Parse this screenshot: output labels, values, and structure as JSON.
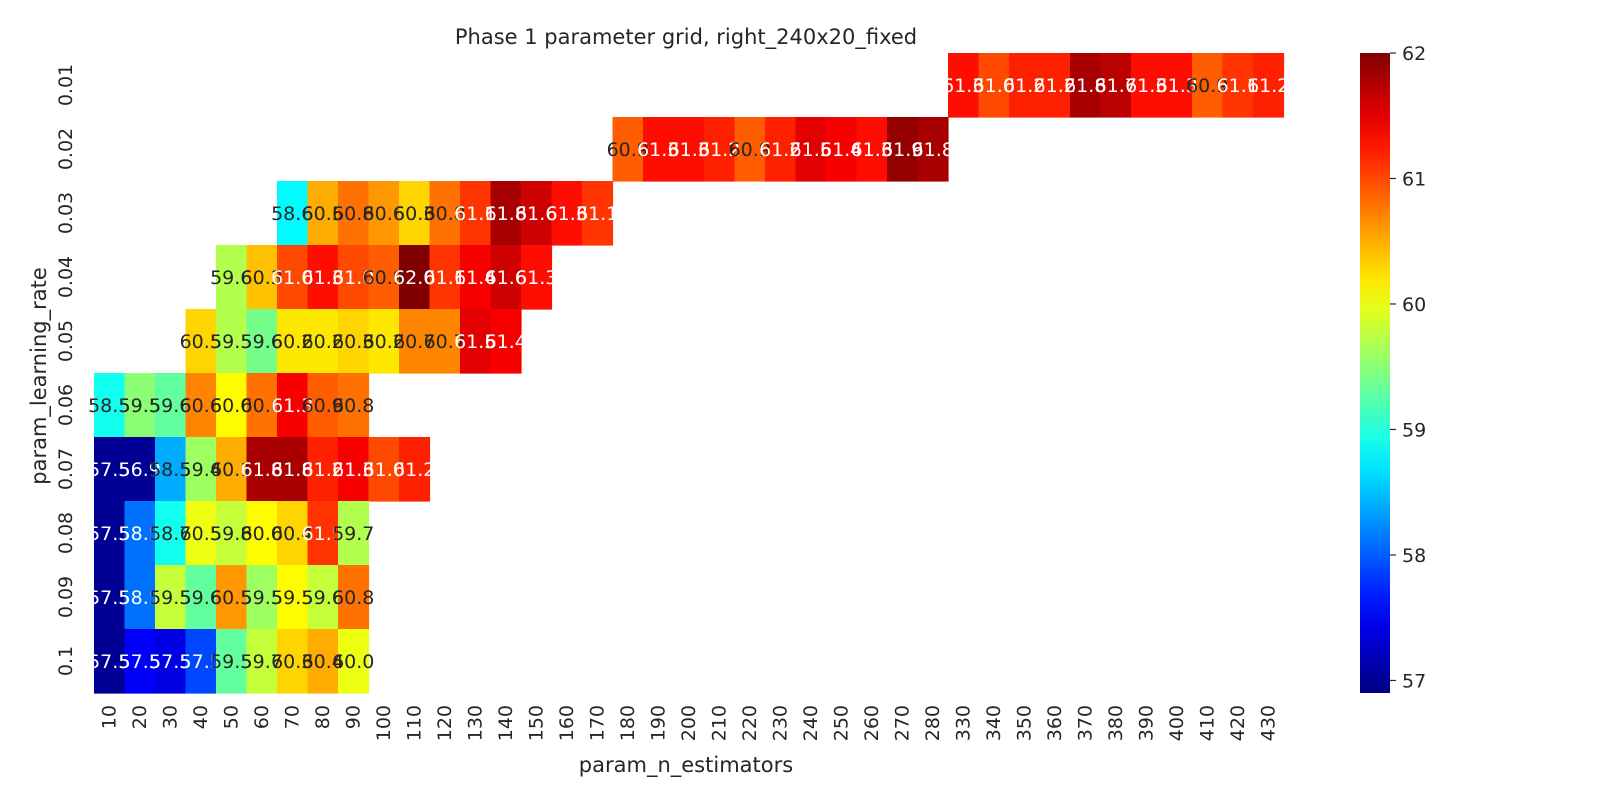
{
  "chart_data": {
    "type": "heatmap",
    "title": "Phase 1 parameter grid, right_240x20_fixed",
    "xlabel": "param_n_estimators",
    "ylabel": "param_learning_rate",
    "x_categories": [
      "10",
      "20",
      "30",
      "40",
      "50",
      "60",
      "70",
      "80",
      "90",
      "100",
      "110",
      "120",
      "130",
      "140",
      "150",
      "160",
      "170",
      "180",
      "190",
      "200",
      "210",
      "220",
      "230",
      "240",
      "250",
      "260",
      "270",
      "280",
      "330",
      "340",
      "350",
      "360",
      "370",
      "380",
      "390",
      "400",
      "410",
      "420",
      "430"
    ],
    "y_categories": [
      "0.01",
      "0.02",
      "0.03",
      "0.04",
      "0.05",
      "0.06",
      "0.07",
      "0.08",
      "0.09",
      "0.1"
    ],
    "value_range": [
      56.9,
      62.0
    ],
    "colormap": "jet",
    "colorbar": {
      "ticks": [
        57,
        58,
        59,
        60,
        61,
        62
      ],
      "tick_labels": [
        "57",
        "58",
        "59",
        "60",
        "61",
        "62"
      ]
    },
    "grid": false,
    "cells": [
      {
        "y": "0.01",
        "x": "330",
        "value": 61.3,
        "label": "61.3"
      },
      {
        "y": "0.01",
        "x": "340",
        "value": 61.0,
        "label": "61.0"
      },
      {
        "y": "0.01",
        "x": "350",
        "value": 61.2,
        "label": "61.2"
      },
      {
        "y": "0.01",
        "x": "360",
        "value": 61.2,
        "label": "61.2"
      },
      {
        "y": "0.01",
        "x": "370",
        "value": 61.8,
        "label": "61.8"
      },
      {
        "y": "0.01",
        "x": "380",
        "value": 61.7,
        "label": "61.7"
      },
      {
        "y": "0.01",
        "x": "390",
        "value": 61.3,
        "label": "61.3"
      },
      {
        "y": "0.01",
        "x": "400",
        "value": 61.3,
        "label": "61.3"
      },
      {
        "y": "0.01",
        "x": "410",
        "value": 60.9,
        "label": "60.9"
      },
      {
        "y": "0.01",
        "x": "420",
        "value": 61.1,
        "label": "61.1"
      },
      {
        "y": "0.01",
        "x": "430",
        "value": 61.2,
        "label": "61.2"
      },
      {
        "y": "0.02",
        "x": "180",
        "value": 60.9,
        "label": "60.9"
      },
      {
        "y": "0.02",
        "x": "190",
        "value": 61.3,
        "label": "61.3"
      },
      {
        "y": "0.02",
        "x": "200",
        "value": 61.3,
        "label": "61.3"
      },
      {
        "y": "0.02",
        "x": "210",
        "value": 61.2,
        "label": "61.2"
      },
      {
        "y": "0.02",
        "x": "220",
        "value": 60.9,
        "label": "60.9"
      },
      {
        "y": "0.02",
        "x": "230",
        "value": 61.2,
        "label": "61.2"
      },
      {
        "y": "0.02",
        "x": "240",
        "value": 61.5,
        "label": "61.5"
      },
      {
        "y": "0.02",
        "x": "250",
        "value": 61.4,
        "label": "61.4"
      },
      {
        "y": "0.02",
        "x": "260",
        "value": 61.3,
        "label": "61.3"
      },
      {
        "y": "0.02",
        "x": "270",
        "value": 61.9,
        "label": "61.9"
      },
      {
        "y": "0.02",
        "x": "280",
        "value": 61.8,
        "label": "61.8"
      },
      {
        "y": "0.03",
        "x": "70",
        "value": 58.8,
        "label": "58.6"
      },
      {
        "y": "0.03",
        "x": "80",
        "value": 60.5,
        "label": "60.5"
      },
      {
        "y": "0.03",
        "x": "90",
        "value": 60.8,
        "label": "60.8"
      },
      {
        "y": "0.03",
        "x": "100",
        "value": 60.6,
        "label": "60.6"
      },
      {
        "y": "0.03",
        "x": "110",
        "value": 60.3,
        "label": "60.3"
      },
      {
        "y": "0.03",
        "x": "120",
        "value": 60.8,
        "label": "60.8"
      },
      {
        "y": "0.03",
        "x": "130",
        "value": 61.1,
        "label": "61.1"
      },
      {
        "y": "0.03",
        "x": "140",
        "value": 61.8,
        "label": "61.8"
      },
      {
        "y": "0.03",
        "x": "150",
        "value": 61.6,
        "label": "61.6"
      },
      {
        "y": "0.03",
        "x": "160",
        "value": 61.3,
        "label": "61.3"
      },
      {
        "y": "0.03",
        "x": "170",
        "value": 61.1,
        "label": "61.1"
      },
      {
        "y": "0.04",
        "x": "50",
        "value": 59.7,
        "label": "59.6"
      },
      {
        "y": "0.04",
        "x": "60",
        "value": 60.4,
        "label": "60.3"
      },
      {
        "y": "0.04",
        "x": "70",
        "value": 61.0,
        "label": "61.0"
      },
      {
        "y": "0.04",
        "x": "80",
        "value": 61.3,
        "label": "61.3"
      },
      {
        "y": "0.04",
        "x": "90",
        "value": 61.0,
        "label": "61.0"
      },
      {
        "y": "0.04",
        "x": "100",
        "value": 60.9,
        "label": "60.9"
      },
      {
        "y": "0.04",
        "x": "110",
        "value": 62.0,
        "label": "62.0"
      },
      {
        "y": "0.04",
        "x": "120",
        "value": 61.1,
        "label": "61.1"
      },
      {
        "y": "0.04",
        "x": "130",
        "value": 61.4,
        "label": "61.4"
      },
      {
        "y": "0.04",
        "x": "140",
        "value": 61.6,
        "label": "61.6"
      },
      {
        "y": "0.04",
        "x": "150",
        "value": 61.3,
        "label": "61.3"
      },
      {
        "y": "0.05",
        "x": "40",
        "value": 60.3,
        "label": "60.5"
      },
      {
        "y": "0.05",
        "x": "50",
        "value": 59.7,
        "label": "59.5"
      },
      {
        "y": "0.05",
        "x": "60",
        "value": 59.4,
        "label": "59.6"
      },
      {
        "y": "0.05",
        "x": "70",
        "value": 60.2,
        "label": "60.2"
      },
      {
        "y": "0.05",
        "x": "80",
        "value": 60.2,
        "label": "60.2"
      },
      {
        "y": "0.05",
        "x": "90",
        "value": 60.3,
        "label": "60.3"
      },
      {
        "y": "0.05",
        "x": "100",
        "value": 60.2,
        "label": "60.2"
      },
      {
        "y": "0.05",
        "x": "110",
        "value": 60.7,
        "label": "60.7"
      },
      {
        "y": "0.05",
        "x": "120",
        "value": 60.7,
        "label": "60.7"
      },
      {
        "y": "0.05",
        "x": "130",
        "value": 61.5,
        "label": "61.5"
      },
      {
        "y": "0.05",
        "x": "140",
        "value": 61.4,
        "label": "61.4"
      },
      {
        "y": "0.06",
        "x": "10",
        "value": 58.9,
        "label": "58.5"
      },
      {
        "y": "0.06",
        "x": "20",
        "value": 59.5,
        "label": "59.5"
      },
      {
        "y": "0.06",
        "x": "30",
        "value": 59.3,
        "label": "59.6"
      },
      {
        "y": "0.06",
        "x": "40",
        "value": 60.7,
        "label": "60.6"
      },
      {
        "y": "0.06",
        "x": "50",
        "value": 60.1,
        "label": "60.0"
      },
      {
        "y": "0.06",
        "x": "60",
        "value": 60.8,
        "label": "60.6"
      },
      {
        "y": "0.06",
        "x": "70",
        "value": 61.4,
        "label": "61.3"
      },
      {
        "y": "0.06",
        "x": "80",
        "value": 60.9,
        "label": "60.9"
      },
      {
        "y": "0.06",
        "x": "90",
        "value": 60.8,
        "label": "60.8"
      },
      {
        "y": "0.07",
        "x": "10",
        "value": 57.0,
        "label": "57.5"
      },
      {
        "y": "0.07",
        "x": "20",
        "value": 57.0,
        "label": "56.9"
      },
      {
        "y": "0.07",
        "x": "30",
        "value": 58.4,
        "label": "58.5"
      },
      {
        "y": "0.07",
        "x": "40",
        "value": 59.6,
        "label": "59.4"
      },
      {
        "y": "0.07",
        "x": "50",
        "value": 60.5,
        "label": "60.1"
      },
      {
        "y": "0.07",
        "x": "60",
        "value": 61.8,
        "label": "61.8"
      },
      {
        "y": "0.07",
        "x": "70",
        "value": 61.8,
        "label": "61.8"
      },
      {
        "y": "0.07",
        "x": "80",
        "value": 61.2,
        "label": "61.2"
      },
      {
        "y": "0.07",
        "x": "90",
        "value": 61.4,
        "label": "61.3"
      },
      {
        "y": "0.07",
        "x": "100",
        "value": 61.0,
        "label": "61.0"
      },
      {
        "y": "0.07",
        "x": "110",
        "value": 61.2,
        "label": "61.2"
      },
      {
        "y": "0.08",
        "x": "10",
        "value": 57.0,
        "label": "57.5"
      },
      {
        "y": "0.08",
        "x": "20",
        "value": 58.1,
        "label": "58.5"
      },
      {
        "y": "0.08",
        "x": "30",
        "value": 58.9,
        "label": "58.7"
      },
      {
        "y": "0.08",
        "x": "40",
        "value": 60.0,
        "label": "60.5"
      },
      {
        "y": "0.08",
        "x": "50",
        "value": 59.8,
        "label": "59.8"
      },
      {
        "y": "0.08",
        "x": "60",
        "value": 60.1,
        "label": "60.0"
      },
      {
        "y": "0.08",
        "x": "70",
        "value": 60.3,
        "label": "60.4"
      },
      {
        "y": "0.08",
        "x": "80",
        "value": 61.1,
        "label": "61.5"
      },
      {
        "y": "0.08",
        "x": "90",
        "value": 59.7,
        "label": "59.7"
      },
      {
        "y": "0.09",
        "x": "10",
        "value": 57.0,
        "label": "57.5"
      },
      {
        "y": "0.09",
        "x": "20",
        "value": 58.1,
        "label": "58.5"
      },
      {
        "y": "0.09",
        "x": "30",
        "value": 59.8,
        "label": "59.5"
      },
      {
        "y": "0.09",
        "x": "40",
        "value": 59.3,
        "label": "59.6"
      },
      {
        "y": "0.09",
        "x": "50",
        "value": 60.6,
        "label": "60.5"
      },
      {
        "y": "0.09",
        "x": "60",
        "value": 59.6,
        "label": "59.5"
      },
      {
        "y": "0.09",
        "x": "70",
        "value": 60.1,
        "label": "59.5"
      },
      {
        "y": "0.09",
        "x": "80",
        "value": 59.8,
        "label": "59.6"
      },
      {
        "y": "0.09",
        "x": "90",
        "value": 60.8,
        "label": "60.8"
      },
      {
        "y": "0.1",
        "x": "10",
        "value": 57.0,
        "label": "57.5"
      },
      {
        "y": "0.1",
        "x": "20",
        "value": 57.5,
        "label": "57.5"
      },
      {
        "y": "0.1",
        "x": "30",
        "value": 57.4,
        "label": "57.5"
      },
      {
        "y": "0.1",
        "x": "40",
        "value": 57.9,
        "label": "57.5"
      },
      {
        "y": "0.1",
        "x": "50",
        "value": 59.3,
        "label": "59.5"
      },
      {
        "y": "0.1",
        "x": "60",
        "value": 59.8,
        "label": "59.7"
      },
      {
        "y": "0.1",
        "x": "70",
        "value": 60.3,
        "label": "60.3"
      },
      {
        "y": "0.1",
        "x": "80",
        "value": 60.5,
        "label": "60.4"
      },
      {
        "y": "0.1",
        "x": "90",
        "value": 60.0,
        "label": "60.0"
      }
    ]
  }
}
